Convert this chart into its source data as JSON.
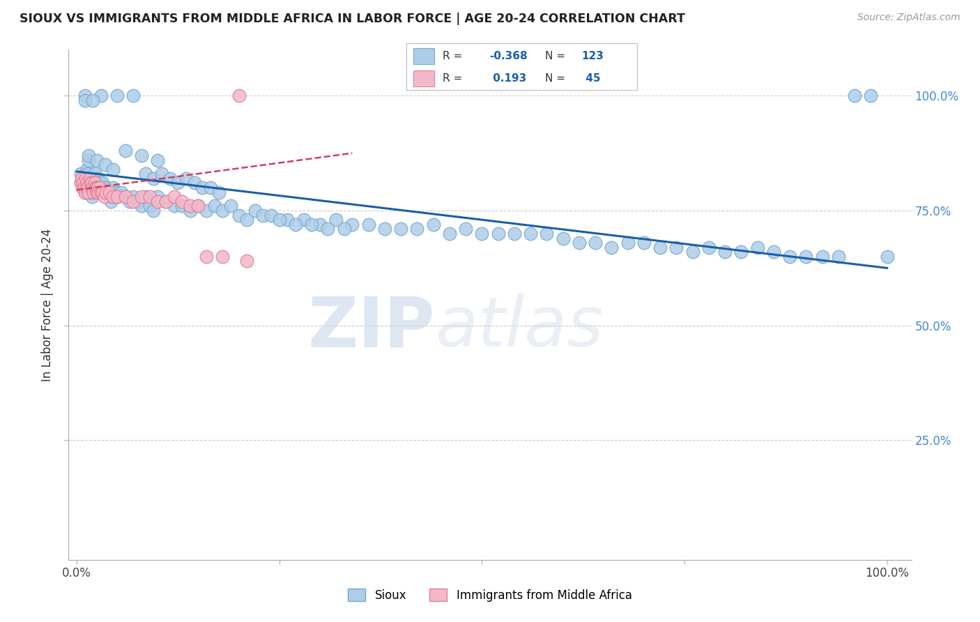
{
  "title": "SIOUX VS IMMIGRANTS FROM MIDDLE AFRICA IN LABOR FORCE | AGE 20-24 CORRELATION CHART",
  "source": "Source: ZipAtlas.com",
  "ylabel": "In Labor Force | Age 20-24",
  "xlim": [
    -0.01,
    1.03
  ],
  "ylim": [
    -0.01,
    1.1
  ],
  "blue_color": "#aecde8",
  "pink_color": "#f4b8c8",
  "blue_edge": "#7aaad0",
  "pink_edge": "#e08098",
  "trend_blue": "#1a5fa8",
  "trend_pink": "#d04060",
  "background": "#ffffff",
  "grid_color": "#cccccc",
  "blue_trend_x0": 0.0,
  "blue_trend_y0": 0.835,
  "blue_trend_x1": 1.0,
  "blue_trend_y1": 0.625,
  "pink_trend_x0": 0.0,
  "pink_trend_y0": 0.795,
  "pink_trend_x1": 0.34,
  "pink_trend_y1": 0.875,
  "sioux_x": [
    0.005,
    0.007,
    0.008,
    0.01,
    0.01,
    0.012,
    0.013,
    0.014,
    0.015,
    0.016,
    0.017,
    0.018,
    0.019,
    0.02,
    0.021,
    0.022,
    0.023,
    0.024,
    0.025,
    0.026,
    0.027,
    0.028,
    0.03,
    0.032,
    0.034,
    0.036,
    0.038,
    0.04,
    0.042,
    0.045,
    0.048,
    0.05,
    0.055,
    0.06,
    0.065,
    0.07,
    0.075,
    0.08,
    0.085,
    0.09,
    0.095,
    0.1,
    0.11,
    0.12,
    0.13,
    0.14,
    0.15,
    0.16,
    0.17,
    0.18,
    0.19,
    0.2,
    0.21,
    0.22,
    0.23,
    0.24,
    0.26,
    0.28,
    0.3,
    0.32,
    0.34,
    0.36,
    0.38,
    0.4,
    0.42,
    0.44,
    0.46,
    0.48,
    0.5,
    0.52,
    0.54,
    0.56,
    0.58,
    0.6,
    0.62,
    0.64,
    0.66,
    0.68,
    0.7,
    0.72,
    0.74,
    0.76,
    0.78,
    0.8,
    0.82,
    0.84,
    0.86,
    0.88,
    0.9,
    0.92,
    0.94,
    0.96,
    0.98,
    1.0,
    0.03,
    0.05,
    0.07,
    0.01,
    0.01,
    0.02,
    0.06,
    0.08,
    0.1,
    0.015,
    0.015,
    0.025,
    0.035,
    0.045,
    0.085,
    0.095,
    0.105,
    0.115,
    0.125,
    0.135,
    0.145,
    0.155,
    0.165,
    0.175,
    0.25,
    0.27,
    0.29,
    0.31,
    0.33
  ],
  "sioux_y": [
    0.83,
    0.82,
    0.81,
    0.8,
    0.79,
    0.83,
    0.84,
    0.83,
    0.82,
    0.81,
    0.8,
    0.79,
    0.78,
    0.81,
    0.8,
    0.83,
    0.82,
    0.81,
    0.8,
    0.82,
    0.8,
    0.81,
    0.8,
    0.81,
    0.79,
    0.8,
    0.79,
    0.78,
    0.77,
    0.8,
    0.79,
    0.78,
    0.79,
    0.78,
    0.77,
    0.78,
    0.77,
    0.76,
    0.78,
    0.76,
    0.75,
    0.78,
    0.77,
    0.76,
    0.76,
    0.75,
    0.76,
    0.75,
    0.76,
    0.75,
    0.76,
    0.74,
    0.73,
    0.75,
    0.74,
    0.74,
    0.73,
    0.73,
    0.72,
    0.73,
    0.72,
    0.72,
    0.71,
    0.71,
    0.71,
    0.72,
    0.7,
    0.71,
    0.7,
    0.7,
    0.7,
    0.7,
    0.7,
    0.69,
    0.68,
    0.68,
    0.67,
    0.68,
    0.68,
    0.67,
    0.67,
    0.66,
    0.67,
    0.66,
    0.66,
    0.67,
    0.66,
    0.65,
    0.65,
    0.65,
    0.65,
    1.0,
    1.0,
    0.65,
    1.0,
    1.0,
    1.0,
    1.0,
    0.99,
    0.99,
    0.88,
    0.87,
    0.86,
    0.86,
    0.87,
    0.86,
    0.85,
    0.84,
    0.83,
    0.82,
    0.83,
    0.82,
    0.81,
    0.82,
    0.81,
    0.8,
    0.8,
    0.79,
    0.73,
    0.72,
    0.72,
    0.71,
    0.71
  ],
  "pink_x": [
    0.005,
    0.006,
    0.007,
    0.008,
    0.009,
    0.01,
    0.011,
    0.012,
    0.013,
    0.014,
    0.015,
    0.016,
    0.017,
    0.018,
    0.019,
    0.02,
    0.021,
    0.022,
    0.023,
    0.024,
    0.025,
    0.026,
    0.027,
    0.028,
    0.03,
    0.032,
    0.034,
    0.036,
    0.04,
    0.045,
    0.05,
    0.06,
    0.07,
    0.08,
    0.09,
    0.1,
    0.11,
    0.12,
    0.13,
    0.14,
    0.15,
    0.16,
    0.18,
    0.2,
    0.21
  ],
  "pink_y": [
    0.81,
    0.82,
    0.8,
    0.81,
    0.8,
    0.79,
    0.82,
    0.8,
    0.81,
    0.8,
    0.79,
    0.82,
    0.81,
    0.8,
    0.81,
    0.8,
    0.79,
    0.81,
    0.8,
    0.8,
    0.79,
    0.8,
    0.79,
    0.8,
    0.79,
    0.79,
    0.78,
    0.79,
    0.79,
    0.78,
    0.78,
    0.78,
    0.77,
    0.78,
    0.78,
    0.77,
    0.77,
    0.78,
    0.77,
    0.76,
    0.76,
    0.65,
    0.65,
    1.0,
    0.64
  ]
}
